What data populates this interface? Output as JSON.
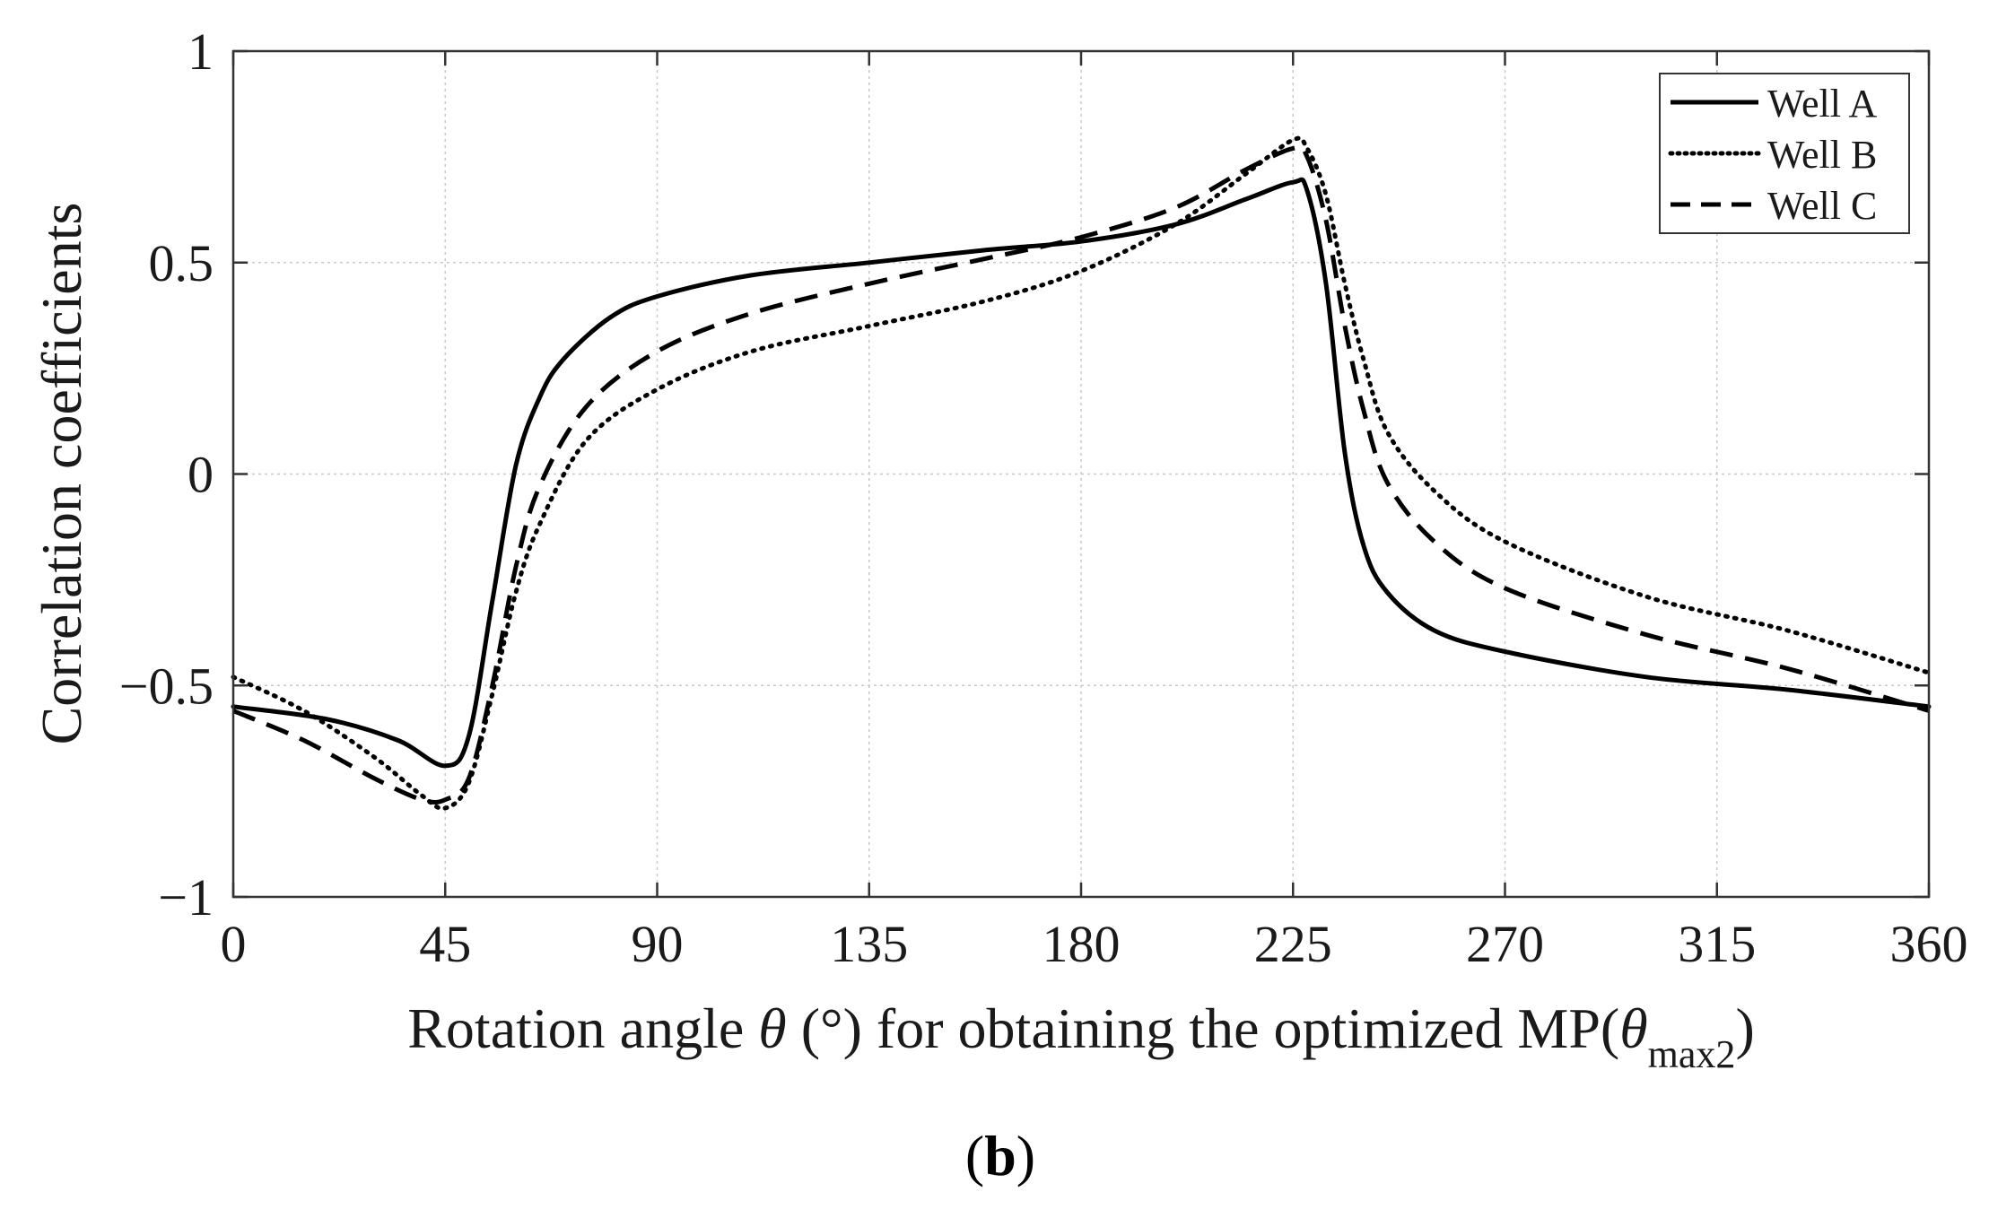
{
  "chart_data": {
    "type": "line",
    "title": "",
    "xlabel": {
      "prefix": "Rotation angle ",
      "symbol": "θ",
      "middle": " (°) for obtaining the optimized MP(",
      "sub_symbol": "θ",
      "subscript": "max2",
      "suffix": ")"
    },
    "ylabel": "Correlation coefficients",
    "xlim": [
      0,
      360
    ],
    "ylim": [
      -1,
      1
    ],
    "xticks": [
      0,
      45,
      90,
      135,
      180,
      225,
      270,
      315,
      360
    ],
    "xtick_labels": [
      "0",
      "45",
      "90",
      "135",
      "180",
      "225",
      "270",
      "315",
      "360"
    ],
    "yticks": [
      1,
      0.5,
      0,
      -0.5,
      -1
    ],
    "ytick_labels": [
      "1",
      "0.5",
      "0",
      "−0.5",
      "−1"
    ],
    "grid": true,
    "legend_position": "top-right",
    "series": [
      {
        "name": "Well A",
        "style": "solid",
        "x": [
          0,
          20,
          35,
          45,
          50,
          55,
          60,
          65,
          70,
          80,
          90,
          110,
          135,
          160,
          180,
          200,
          215,
          225,
          228,
          232,
          236,
          240,
          245,
          255,
          270,
          300,
          330,
          360
        ],
        "y": [
          -0.55,
          -0.58,
          -0.63,
          -0.69,
          -0.62,
          -0.3,
          0.02,
          0.18,
          0.27,
          0.37,
          0.42,
          0.47,
          0.5,
          0.53,
          0.55,
          0.59,
          0.65,
          0.69,
          0.67,
          0.45,
          0.05,
          -0.17,
          -0.28,
          -0.37,
          -0.42,
          -0.48,
          -0.51,
          -0.55
        ]
      },
      {
        "name": "Well B",
        "style": "dotted",
        "x": [
          0,
          15,
          30,
          40,
          45,
          50,
          55,
          60,
          65,
          75,
          90,
          110,
          135,
          160,
          180,
          200,
          215,
          225,
          228,
          232,
          236,
          240,
          245,
          255,
          270,
          300,
          330,
          360
        ],
        "y": [
          -0.48,
          -0.56,
          -0.67,
          -0.76,
          -0.79,
          -0.73,
          -0.52,
          -0.28,
          -0.12,
          0.08,
          0.2,
          0.29,
          0.35,
          0.41,
          0.48,
          0.59,
          0.71,
          0.79,
          0.77,
          0.66,
          0.45,
          0.27,
          0.1,
          -0.04,
          -0.16,
          -0.29,
          -0.37,
          -0.47
        ]
      },
      {
        "name": "Well C",
        "style": "dashed",
        "x": [
          0,
          15,
          30,
          40,
          45,
          50,
          55,
          60,
          65,
          75,
          90,
          110,
          135,
          160,
          180,
          200,
          215,
          225,
          228,
          232,
          236,
          240,
          245,
          255,
          270,
          300,
          330,
          360
        ],
        "y": [
          -0.56,
          -0.63,
          -0.72,
          -0.77,
          -0.77,
          -0.72,
          -0.5,
          -0.22,
          -0.03,
          0.16,
          0.29,
          0.38,
          0.45,
          0.51,
          0.56,
          0.63,
          0.72,
          0.77,
          0.75,
          0.6,
          0.35,
          0.15,
          -0.02,
          -0.16,
          -0.27,
          -0.38,
          -0.46,
          -0.56
        ]
      }
    ]
  },
  "panel_label": {
    "open": "(",
    "letter": "b",
    "close": ")"
  }
}
